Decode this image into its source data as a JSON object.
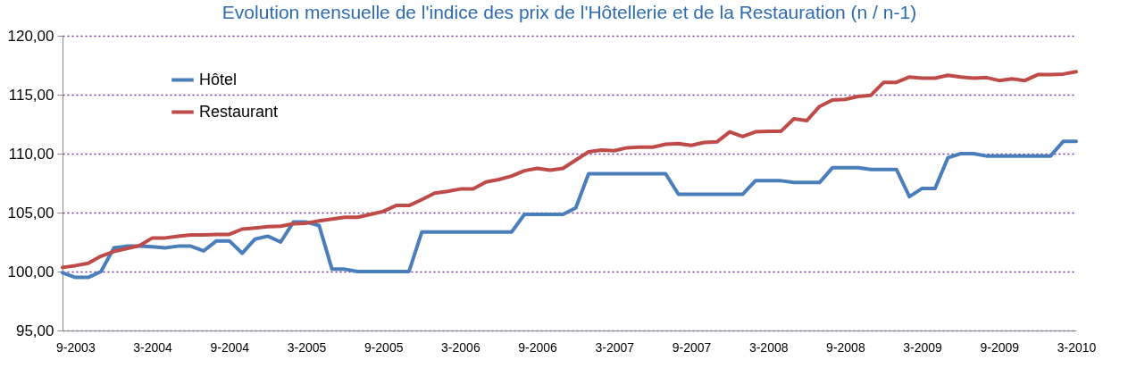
{
  "chart_data": {
    "type": "line",
    "title": "Evolution mensuelle de l'indice des prix de l'Hôtellerie et de la Restauration (n / n-1)",
    "categories": [
      null,
      "9-2003",
      null,
      null,
      null,
      null,
      null,
      "3-2004",
      null,
      null,
      null,
      null,
      null,
      "9-2004",
      null,
      null,
      null,
      null,
      null,
      "3-2005",
      null,
      null,
      null,
      null,
      null,
      "9-2005",
      null,
      null,
      null,
      null,
      null,
      "3-2006",
      null,
      null,
      null,
      null,
      null,
      "9-2006",
      null,
      null,
      null,
      null,
      null,
      "3-2007",
      null,
      null,
      null,
      null,
      null,
      "9-2007",
      null,
      null,
      null,
      null,
      null,
      "3-2008",
      null,
      null,
      null,
      null,
      null,
      "9-2008",
      null,
      null,
      null,
      null,
      null,
      "3-2009",
      null,
      null,
      null,
      null,
      null,
      "9-2009",
      null,
      null,
      null,
      null,
      null,
      "3-2010"
    ],
    "series": [
      {
        "name": "Hôtel",
        "color": "#4a7ebb",
        "values": [
          99.9,
          99.5,
          99.5,
          100.0,
          102.0,
          102.15,
          102.15,
          102.1,
          102.0,
          102.15,
          102.15,
          101.75,
          102.6,
          102.6,
          101.55,
          102.75,
          103.0,
          102.5,
          104.2,
          104.2,
          103.9,
          100.2,
          100.2,
          100.0,
          100.0,
          100.0,
          100.0,
          100.0,
          103.35,
          103.35,
          103.35,
          103.35,
          103.35,
          103.35,
          103.35,
          103.35,
          104.85,
          104.85,
          104.85,
          104.85,
          105.4,
          108.3,
          108.3,
          108.3,
          108.3,
          108.3,
          108.3,
          108.3,
          106.55,
          106.55,
          106.55,
          106.55,
          106.55,
          106.55,
          107.7,
          107.7,
          107.7,
          107.55,
          107.55,
          107.55,
          108.8,
          108.8,
          108.8,
          108.65,
          108.65,
          108.65,
          106.35,
          107.05,
          107.05,
          109.65,
          110.0,
          110.0,
          109.8,
          109.8,
          109.8,
          109.8,
          109.8,
          109.8,
          111.05,
          111.05
        ]
      },
      {
        "name": "Restaurant",
        "color": "#be4b48",
        "values": [
          100.35,
          100.5,
          100.7,
          101.3,
          101.7,
          101.95,
          102.2,
          102.85,
          102.85,
          103.0,
          103.1,
          103.1,
          103.15,
          103.15,
          103.6,
          103.7,
          103.8,
          103.85,
          104.05,
          104.1,
          104.3,
          104.45,
          104.6,
          104.6,
          104.85,
          105.1,
          105.6,
          105.6,
          106.1,
          106.65,
          106.8,
          107.0,
          107.0,
          107.6,
          107.8,
          108.1,
          108.55,
          108.75,
          108.6,
          108.75,
          109.45,
          110.15,
          110.3,
          110.25,
          110.5,
          110.55,
          110.55,
          110.8,
          110.85,
          110.7,
          110.95,
          111.0,
          111.85,
          111.45,
          111.85,
          111.9,
          111.9,
          112.95,
          112.8,
          114.0,
          114.55,
          114.6,
          114.85,
          114.95,
          116.05,
          116.05,
          116.5,
          116.4,
          116.4,
          116.65,
          116.5,
          116.4,
          116.45,
          116.2,
          116.35,
          116.2,
          116.7,
          116.7,
          116.75,
          116.95
        ]
      }
    ],
    "ylim": [
      95,
      120
    ],
    "yticks": [
      {
        "value": 95,
        "label": "95,00"
      },
      {
        "value": 100,
        "label": "100,00"
      },
      {
        "value": 105,
        "label": "105,00"
      },
      {
        "value": 110,
        "label": "110,00"
      },
      {
        "value": 115,
        "label": "115,00"
      },
      {
        "value": 120,
        "label": "120,00"
      }
    ],
    "grid": "y",
    "legend": "top left",
    "line_style": "solid",
    "marker": "none"
  }
}
